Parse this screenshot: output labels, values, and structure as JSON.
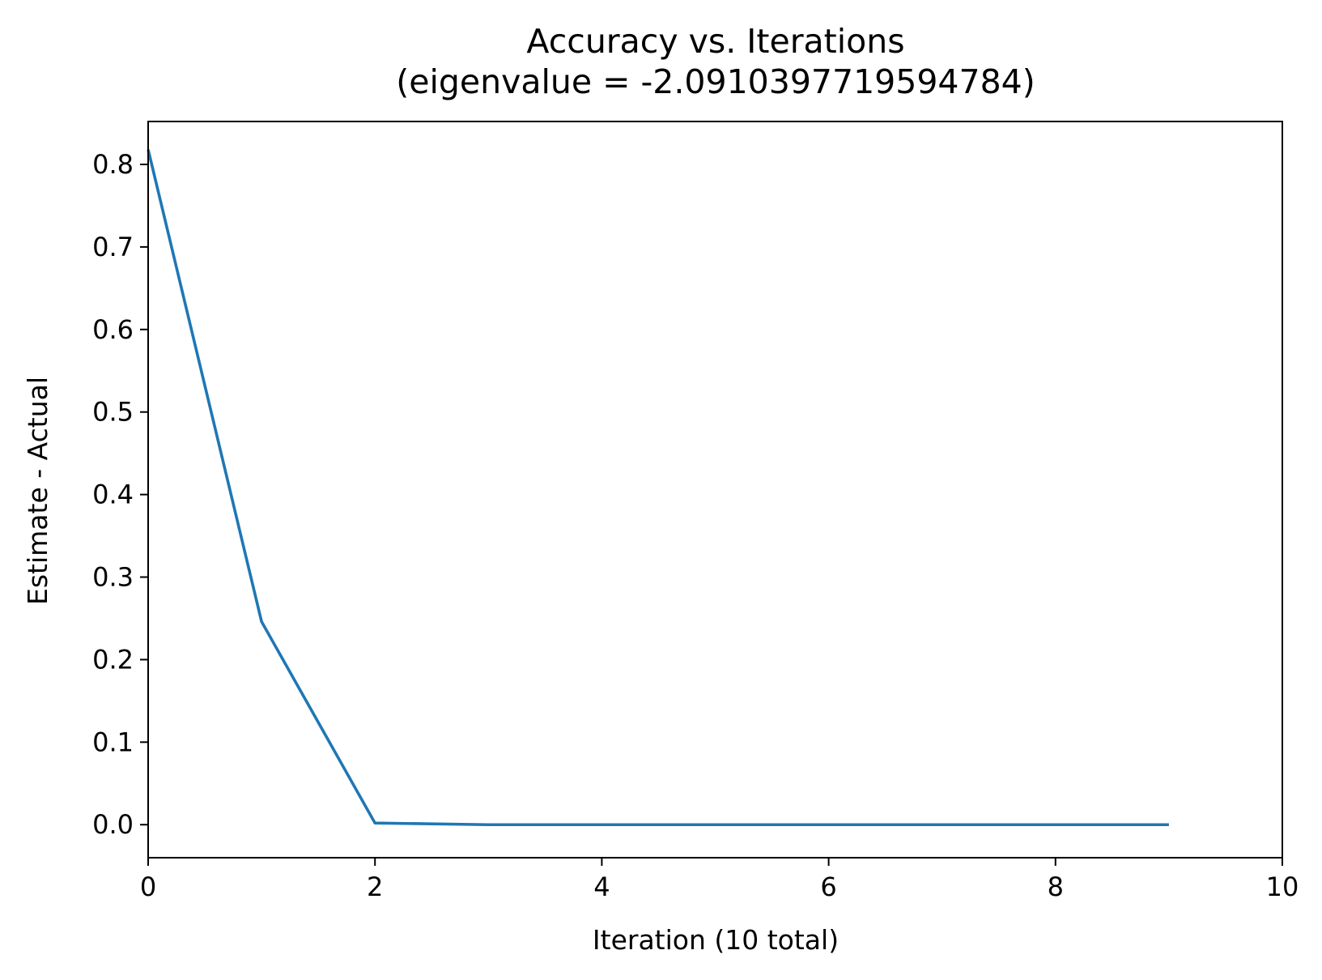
{
  "chart_data": {
    "type": "line",
    "title": "Accuracy vs. Iterations",
    "subtitle": "(eigenvalue = -2.0910397719594784)",
    "xlabel": "Iteration (10 total)",
    "ylabel": "Estimate - Actual",
    "xlim": [
      0,
      10
    ],
    "ylim": [
      -0.04,
      0.852
    ],
    "x_ticks": [
      "0",
      "2",
      "4",
      "6",
      "8",
      "10"
    ],
    "x_tick_values": [
      0,
      2,
      4,
      6,
      8,
      10
    ],
    "y_ticks": [
      "0.0",
      "0.1",
      "0.2",
      "0.3",
      "0.4",
      "0.5",
      "0.6",
      "0.7",
      "0.8"
    ],
    "y_tick_values": [
      0,
      0.1,
      0.2,
      0.3,
      0.4,
      0.5,
      0.6,
      0.7,
      0.8
    ],
    "grid": false,
    "legend": "none",
    "series": [
      {
        "color": "#1f77b4",
        "x": [
          0,
          1,
          2,
          3,
          4,
          5,
          6,
          7,
          8,
          9
        ],
        "y": [
          0.818,
          0.246,
          0.002,
          0.0,
          0.0,
          0.0,
          0.0,
          0.0,
          0.0,
          0.0
        ]
      }
    ]
  }
}
